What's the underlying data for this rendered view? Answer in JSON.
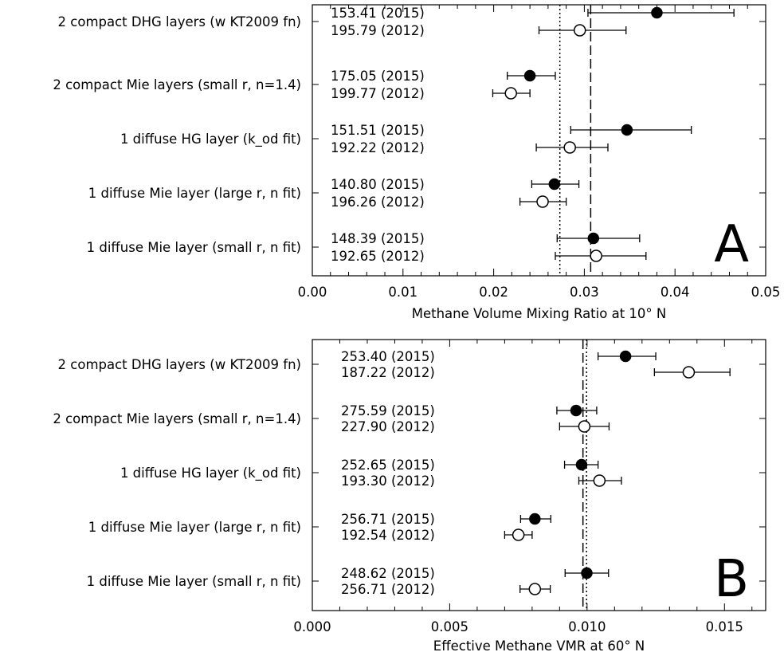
{
  "chart_data": [
    {
      "type": "scatter",
      "panel_label": "A",
      "xlabel": "Methane Volume Mixing Ratio at 10° N",
      "xlim": [
        0,
        0.05
      ],
      "xticks": [
        "0.00",
        "0.01",
        "0.02",
        "0.03",
        "0.04",
        "0.05"
      ],
      "xtick_values": [
        0,
        0.01,
        0.02,
        0.03,
        0.04,
        0.05
      ],
      "reference_lines": [
        {
          "style": "dotted",
          "x": 0.0273
        },
        {
          "style": "dashed",
          "x": 0.0307
        }
      ],
      "categories": [
        "2 compact DHG layers (w KT2009 fn)",
        "2 compact Mie layers (small r, n=1.4)",
        "1 diffuse HG layer (k_od fit)",
        "1 diffuse Mie layer (large r, n fit)",
        "1 diffuse Mie layer (small r, n fit)"
      ],
      "series": [
        {
          "marker": "filled-circle",
          "labels": [
            "153.41 (2015)",
            "175.05 (2015)",
            "151.51 (2015)",
            "140.80 (2015)",
            "148.39 (2015)"
          ],
          "values": [
            0.038,
            0.024,
            0.0347,
            0.0267,
            0.031
          ],
          "err_low": [
            0.0304,
            0.0215,
            0.0285,
            0.0242,
            0.027
          ],
          "err_high": [
            0.0465,
            0.0268,
            0.0418,
            0.0294,
            0.0361
          ]
        },
        {
          "marker": "open-circle",
          "labels": [
            "195.79 (2012)",
            "199.77 (2012)",
            "192.22 (2012)",
            "196.26 (2012)",
            "192.65 (2012)"
          ],
          "values": [
            0.0295,
            0.0219,
            0.0284,
            0.0254,
            0.0313
          ],
          "err_low": [
            0.025,
            0.0199,
            0.0247,
            0.0229,
            0.0268
          ],
          "err_high": [
            0.0346,
            0.024,
            0.0326,
            0.028,
            0.0368
          ]
        }
      ]
    },
    {
      "type": "scatter",
      "panel_label": "B",
      "xlabel": "Effective Methane VMR at 60° N",
      "xlim": [
        0,
        0.0165
      ],
      "xticks": [
        "0.000",
        "0.005",
        "0.010",
        "0.015"
      ],
      "xtick_values": [
        0,
        0.005,
        0.01,
        0.015
      ],
      "reference_lines": [
        {
          "style": "dashed",
          "x": 0.00985
        },
        {
          "style": "dotted",
          "x": 0.00998
        }
      ],
      "categories": [
        "2 compact DHG layers (w KT2009 fn)",
        "2 compact Mie layers (small r, n=1.4)",
        "1 diffuse HG layer (k_od fit)",
        "1 diffuse Mie layer (large r, n fit)",
        "1 diffuse Mie layer (small r, n fit)"
      ],
      "series": [
        {
          "marker": "filled-circle",
          "labels": [
            "253.40 (2015)",
            "275.59 (2015)",
            "252.65 (2015)",
            "256.71 (2015)",
            "248.62 (2015)"
          ],
          "values": [
            0.0114,
            0.0096,
            0.0098,
            0.0081,
            0.00999
          ],
          "err_low": [
            0.0104,
            0.0089,
            0.00918,
            0.00758,
            0.0092
          ],
          "err_high": [
            0.0125,
            0.01035,
            0.0104,
            0.00868,
            0.01078
          ]
        },
        {
          "marker": "open-circle",
          "labels": [
            "187.22 (2012)",
            "227.90 (2012)",
            "193.30 (2012)",
            "192.54 (2012)",
            "256.71 (2012)"
          ],
          "values": [
            0.0137,
            0.0099,
            0.01045,
            0.0075,
            0.0081
          ],
          "err_low": [
            0.01245,
            0.009,
            0.0097,
            0.007,
            0.00756
          ],
          "err_high": [
            0.0152,
            0.0108,
            0.01125,
            0.008,
            0.00866
          ]
        }
      ]
    }
  ]
}
